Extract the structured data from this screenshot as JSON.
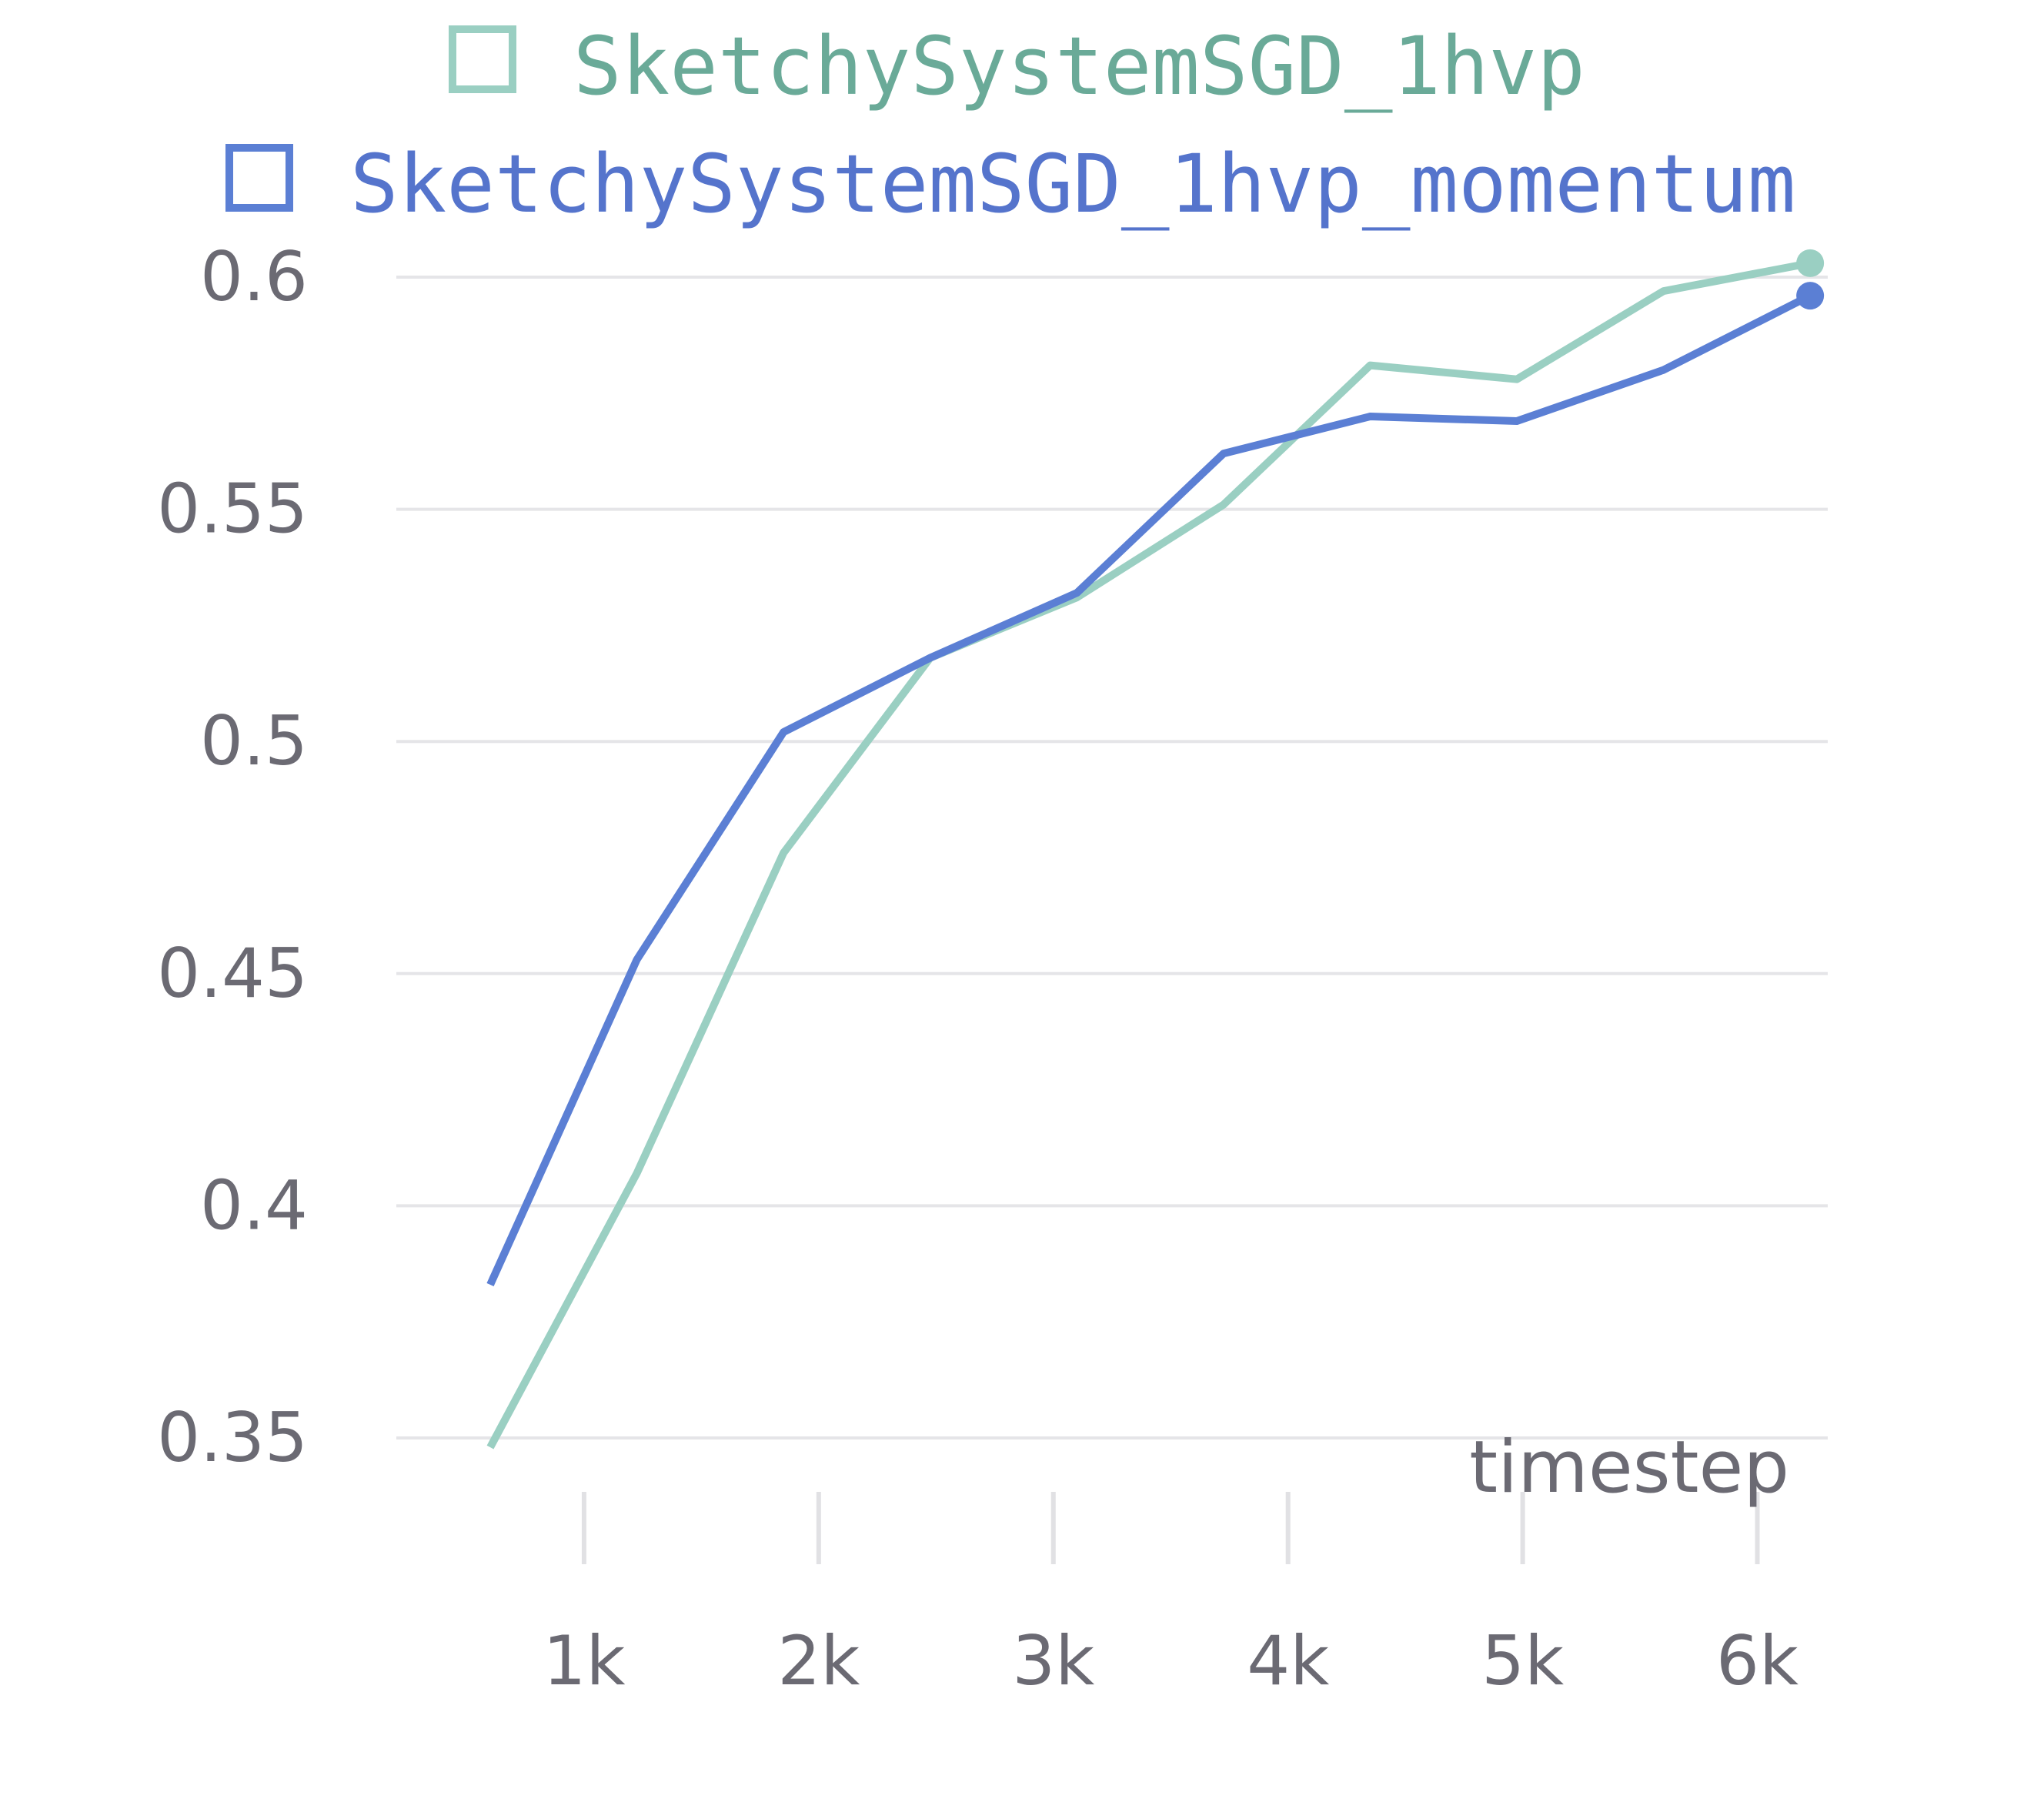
{
  "chart_data": {
    "type": "line",
    "title": "",
    "xlabel": "timestep",
    "ylabel": "",
    "xlim": [
      200,
      6300
    ],
    "ylim": [
      0.35,
      0.6
    ],
    "x_ticks": [
      1000,
      2000,
      3000,
      4000,
      5000,
      6000
    ],
    "x_tick_labels": [
      "1k",
      "2k",
      "3k",
      "4k",
      "5k",
      "6k"
    ],
    "y_ticks": [
      0.35,
      0.4,
      0.45,
      0.5,
      0.55,
      0.6
    ],
    "y_tick_labels": [
      "0.35",
      "0.4",
      "0.45",
      "0.5",
      "0.55",
      "0.6"
    ],
    "legend_position": "top",
    "grid": "horizontal",
    "series": [
      {
        "name": "SketchySystemSGD_1hvp",
        "color": "#9acfc2",
        "legend_text_color": "#6aaa98",
        "x": [
          600,
          1225,
          1850,
          2475,
          3100,
          3725,
          4350,
          4975,
          5600,
          6225
        ],
        "y": [
          0.348,
          0.407,
          0.476,
          0.518,
          0.531,
          0.551,
          0.581,
          0.578,
          0.597,
          0.603
        ]
      },
      {
        "name": "SketchySystemSGD_1hvp_momentum",
        "color": "#5b7fd4",
        "legend_text_color": "#5574cc",
        "x": [
          600,
          1225,
          1850,
          2475,
          3100,
          3725,
          4350,
          4975,
          5600,
          6225
        ],
        "y": [
          0.383,
          0.453,
          0.502,
          0.518,
          0.532,
          0.562,
          0.57,
          0.569,
          0.58,
          0.596
        ]
      }
    ]
  }
}
